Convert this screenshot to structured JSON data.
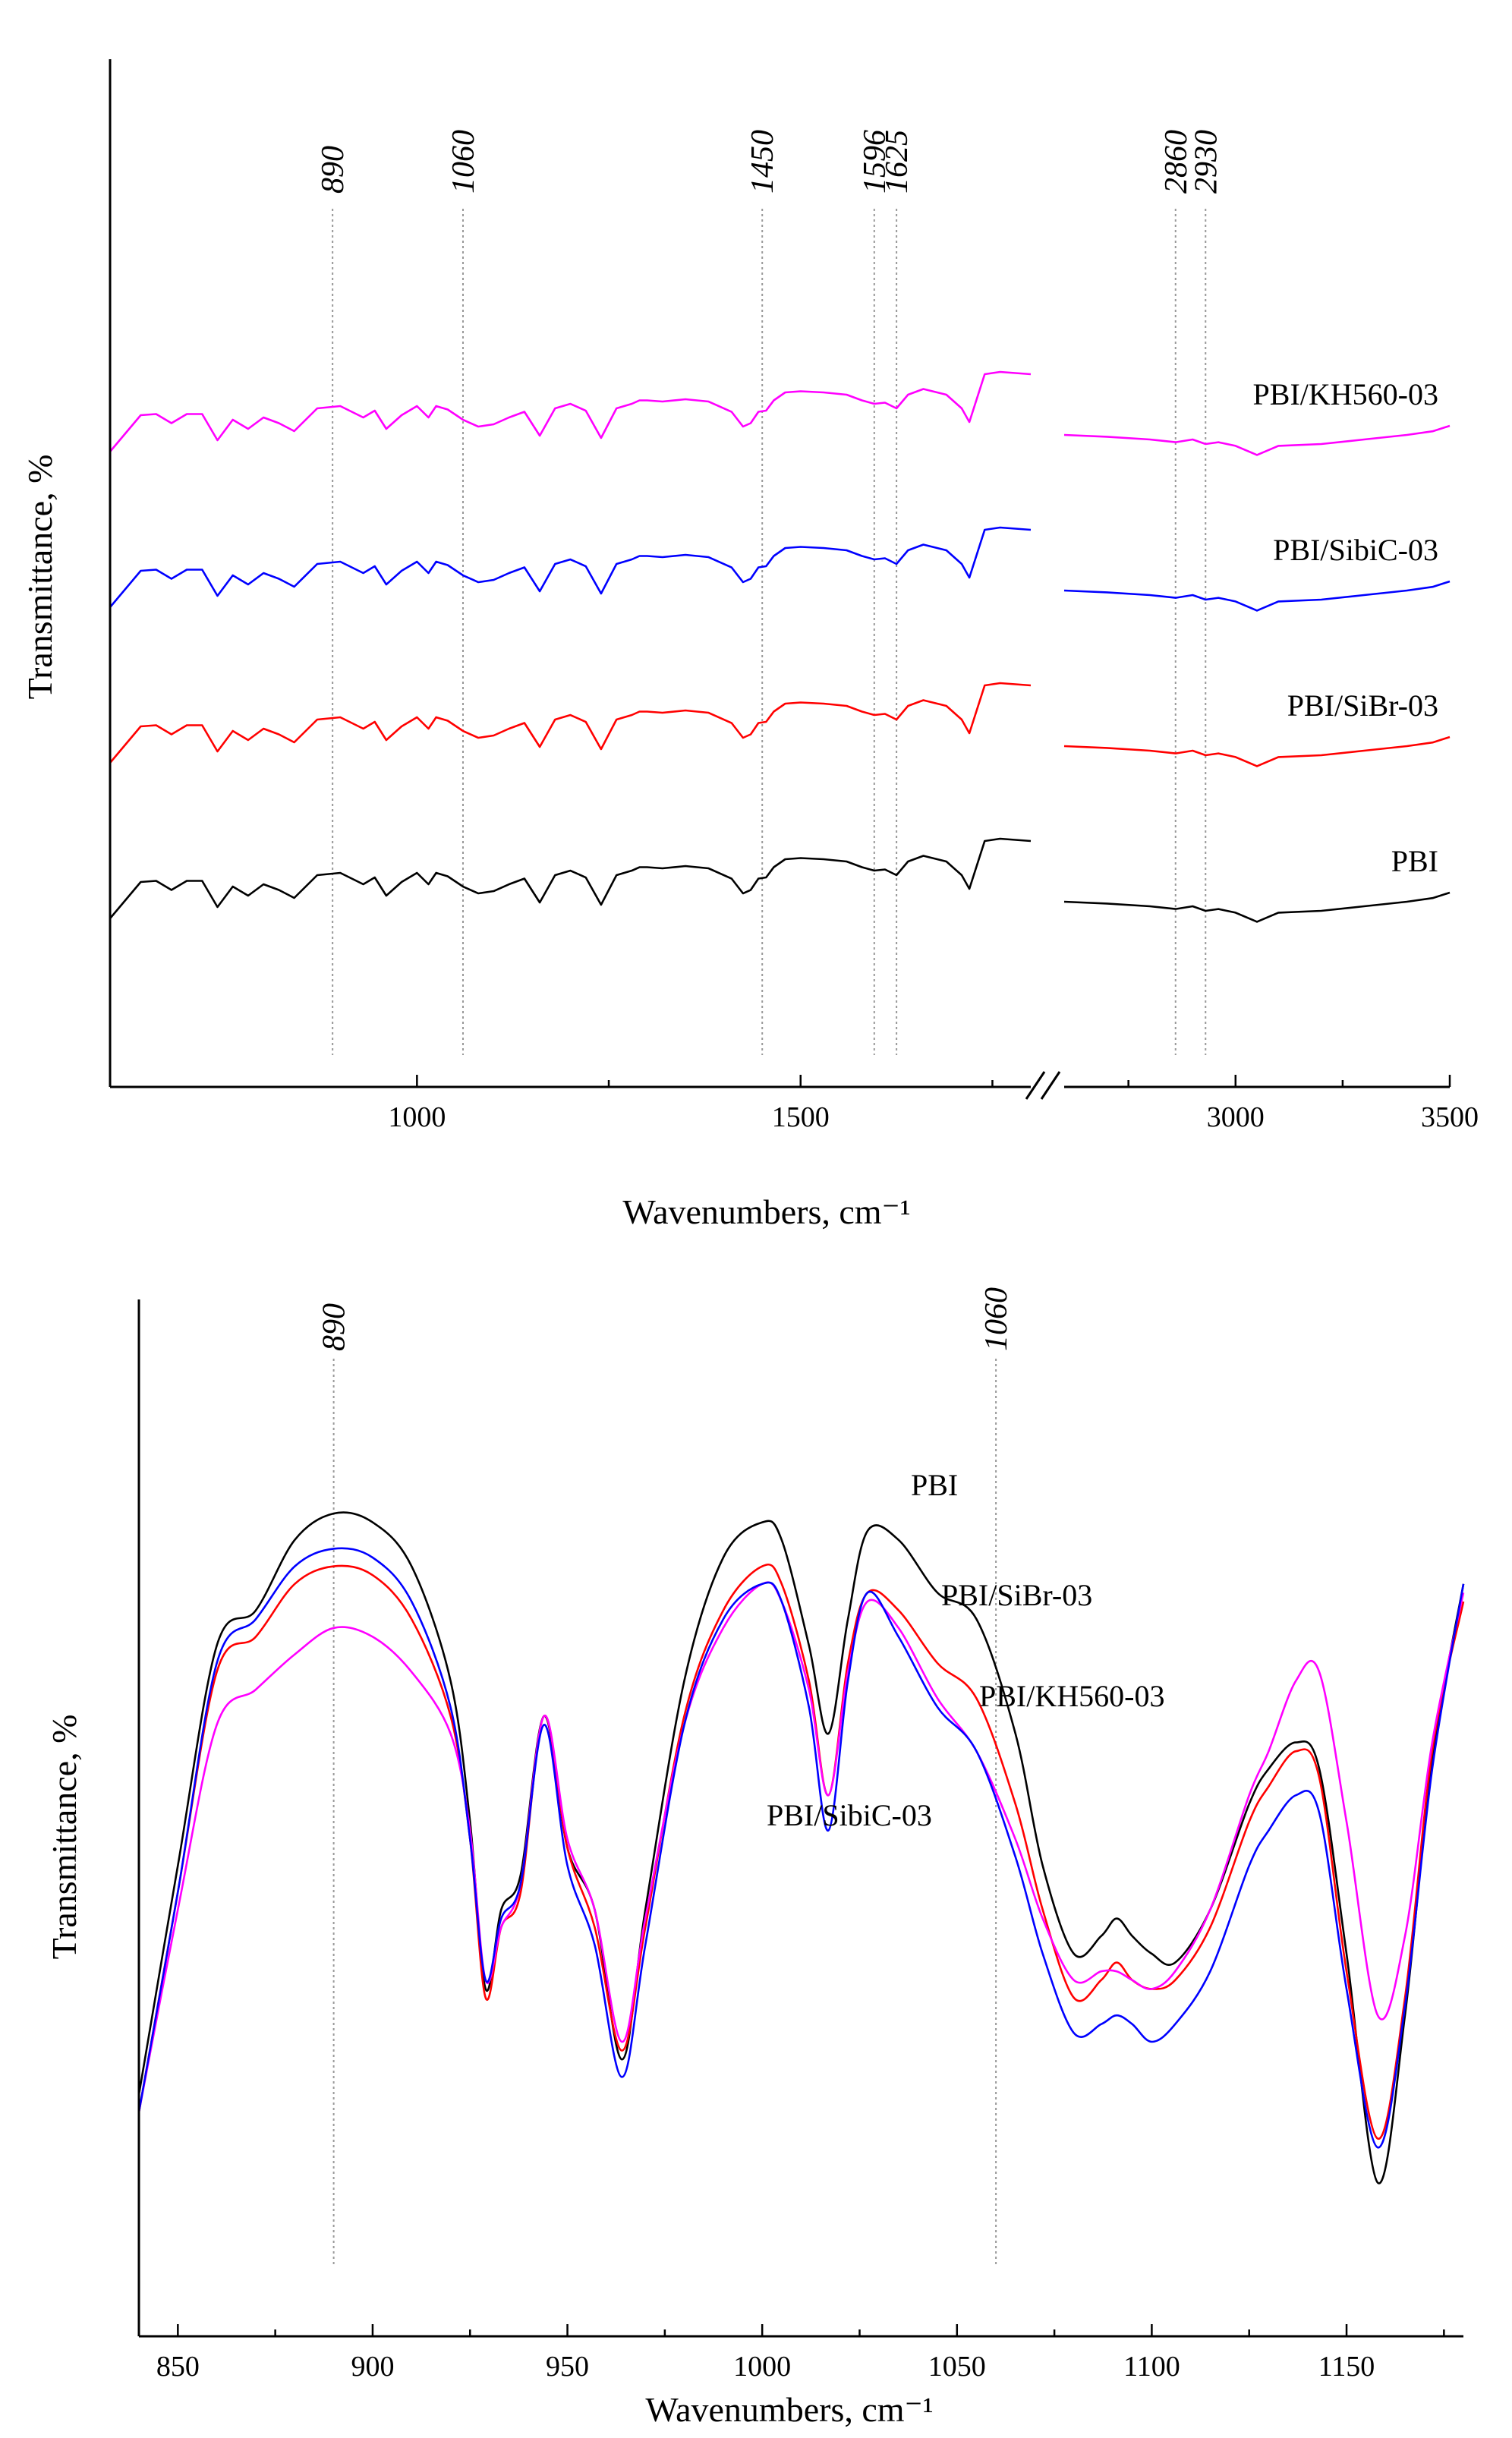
{
  "chart_data": [
    {
      "type": "line",
      "panel": "top",
      "title": "",
      "xlabel": "Wavenumbers, cm⁻¹",
      "ylabel": "Transmittance, %",
      "axis_break": [
        1800,
        2600
      ],
      "xlim_left": [
        600,
        1800
      ],
      "xlim_right": [
        2600,
        3500
      ],
      "xticks": [
        1000,
        1500,
        3000,
        3500
      ],
      "xtick_labels": [
        "1000",
        "1500",
        "3000",
        "3500"
      ],
      "grid": false,
      "reference_lines": [
        {
          "x": 890,
          "label": "890"
        },
        {
          "x": 1060,
          "label": "1060"
        },
        {
          "x": 1450,
          "label": "1450"
        },
        {
          "x": 1596,
          "label": "1596"
        },
        {
          "x": 1625,
          "label": "1625"
        },
        {
          "x": 2860,
          "label": "2860"
        },
        {
          "x": 2930,
          "label": "2930"
        }
      ],
      "series_shape": {
        "x": [
          600,
          640,
          660,
          680,
          700,
          720,
          740,
          760,
          780,
          800,
          820,
          840,
          870,
          900,
          930,
          945,
          960,
          980,
          1000,
          1015,
          1025,
          1040,
          1060,
          1080,
          1100,
          1120,
          1140,
          1160,
          1180,
          1200,
          1220,
          1240,
          1260,
          1270,
          1280,
          1290,
          1300,
          1320,
          1350,
          1380,
          1410,
          1425,
          1435,
          1445,
          1455,
          1465,
          1480,
          1500,
          1530,
          1560,
          1580,
          1596,
          1610,
          1625,
          1640,
          1660,
          1690,
          1710,
          1720,
          1740,
          1760,
          1800
        ],
        "y": [
          0.6,
          0.92,
          0.93,
          0.85,
          0.93,
          0.93,
          0.7,
          0.88,
          0.8,
          0.9,
          0.85,
          0.78,
          0.98,
          1.0,
          0.9,
          0.96,
          0.8,
          0.92,
          1.0,
          0.9,
          1.0,
          0.97,
          0.88,
          0.82,
          0.84,
          0.9,
          0.95,
          0.74,
          0.98,
          1.02,
          0.96,
          0.72,
          0.98,
          1.0,
          1.02,
          1.05,
          1.05,
          1.04,
          1.06,
          1.04,
          0.95,
          0.82,
          0.85,
          0.95,
          0.96,
          1.05,
          1.12,
          1.13,
          1.12,
          1.1,
          1.05,
          1.02,
          1.03,
          0.98,
          1.1,
          1.15,
          1.1,
          0.98,
          0.86,
          1.28,
          1.3,
          1.28
        ],
        "right_x": [
          2600,
          2700,
          2800,
          2860,
          2900,
          2930,
          2960,
          3000,
          3050,
          3100,
          3200,
          3300,
          3400,
          3460,
          3500
        ],
        "right_y": [
          0.0,
          -0.02,
          -0.05,
          -0.08,
          -0.05,
          -0.1,
          -0.08,
          -0.12,
          -0.22,
          -0.12,
          -0.1,
          -0.05,
          0.0,
          0.04,
          0.1
        ]
      },
      "series": [
        {
          "name": "PBI/KH560-03",
          "color": "#ff00ff",
          "offset": 3
        },
        {
          "name": "PBI/SibiC-03",
          "color": "#0000ff",
          "offset": 2
        },
        {
          "name": "PBI/SiBr-03",
          "color": "#ff0000",
          "offset": 1
        },
        {
          "name": "PBI",
          "color": "#000000",
          "offset": 0
        }
      ]
    },
    {
      "type": "line",
      "panel": "bottom",
      "title": "",
      "xlabel": "Wavenumbers, cm⁻¹",
      "ylabel": "Transmittance, %",
      "xlim": [
        840,
        1180
      ],
      "xticks": [
        850,
        900,
        950,
        1000,
        1050,
        1100,
        1150
      ],
      "xtick_labels": [
        "850",
        "900",
        "950",
        "1000",
        "1050",
        "1100",
        "1150"
      ],
      "ylim": [
        0,
        1
      ],
      "grid": false,
      "reference_lines": [
        {
          "x": 890,
          "label": "890"
        },
        {
          "x": 1060,
          "label": "1060"
        }
      ],
      "x": [
        840,
        850,
        860,
        870,
        880,
        890,
        900,
        910,
        920,
        925,
        929,
        933,
        938,
        944,
        950,
        957,
        964,
        970,
        980,
        990,
        1000,
        1005,
        1012,
        1017,
        1022,
        1027,
        1035,
        1045,
        1055,
        1065,
        1072,
        1080,
        1087,
        1091,
        1095,
        1100,
        1106,
        1115,
        1125,
        1130,
        1137,
        1143,
        1150,
        1158,
        1165,
        1172,
        1180
      ],
      "series": [
        {
          "name": "PBI",
          "color": "#000000",
          "values": [
            0.19,
            0.45,
            0.7,
            0.74,
            0.82,
            0.85,
            0.84,
            0.79,
            0.66,
            0.5,
            0.31,
            0.4,
            0.44,
            0.62,
            0.47,
            0.4,
            0.23,
            0.4,
            0.66,
            0.8,
            0.84,
            0.82,
            0.7,
            0.6,
            0.73,
            0.83,
            0.82,
            0.76,
            0.73,
            0.6,
            0.45,
            0.35,
            0.37,
            0.39,
            0.37,
            0.35,
            0.34,
            0.4,
            0.52,
            0.56,
            0.59,
            0.56,
            0.35,
            0.09,
            0.28,
            0.57,
            0.77
          ]
        },
        {
          "name": "PBI/SiBr-03",
          "color": "#ff0000",
          "values": [
            0.17,
            0.42,
            0.67,
            0.71,
            0.77,
            0.79,
            0.78,
            0.73,
            0.62,
            0.48,
            0.3,
            0.38,
            0.42,
            0.62,
            0.47,
            0.38,
            0.24,
            0.38,
            0.62,
            0.74,
            0.79,
            0.77,
            0.66,
            0.53,
            0.68,
            0.76,
            0.74,
            0.68,
            0.64,
            0.52,
            0.4,
            0.3,
            0.32,
            0.34,
            0.32,
            0.31,
            0.32,
            0.38,
            0.5,
            0.54,
            0.58,
            0.55,
            0.33,
            0.14,
            0.3,
            0.58,
            0.75
          ]
        },
        {
          "name": "PBI/KH560-03",
          "color": "#ff00ff",
          "values": [
            0.17,
            0.4,
            0.61,
            0.65,
            0.69,
            0.72,
            0.71,
            0.67,
            0.6,
            0.49,
            0.32,
            0.38,
            0.43,
            0.62,
            0.48,
            0.4,
            0.25,
            0.39,
            0.61,
            0.72,
            0.77,
            0.75,
            0.65,
            0.53,
            0.67,
            0.75,
            0.72,
            0.64,
            0.58,
            0.48,
            0.39,
            0.32,
            0.33,
            0.33,
            0.32,
            0.31,
            0.33,
            0.4,
            0.53,
            0.58,
            0.66,
            0.67,
            0.5,
            0.28,
            0.37,
            0.59,
            0.76
          ]
        },
        {
          "name": "PBI/SibiC-03",
          "color": "#0000ff",
          "values": [
            0.17,
            0.42,
            0.68,
            0.73,
            0.79,
            0.81,
            0.8,
            0.75,
            0.63,
            0.48,
            0.32,
            0.39,
            0.43,
            0.61,
            0.45,
            0.36,
            0.21,
            0.36,
            0.61,
            0.73,
            0.77,
            0.75,
            0.63,
            0.49,
            0.66,
            0.76,
            0.71,
            0.63,
            0.58,
            0.46,
            0.35,
            0.26,
            0.27,
            0.28,
            0.27,
            0.25,
            0.27,
            0.33,
            0.45,
            0.49,
            0.53,
            0.51,
            0.31,
            0.13,
            0.29,
            0.56,
            0.77
          ]
        }
      ]
    }
  ]
}
